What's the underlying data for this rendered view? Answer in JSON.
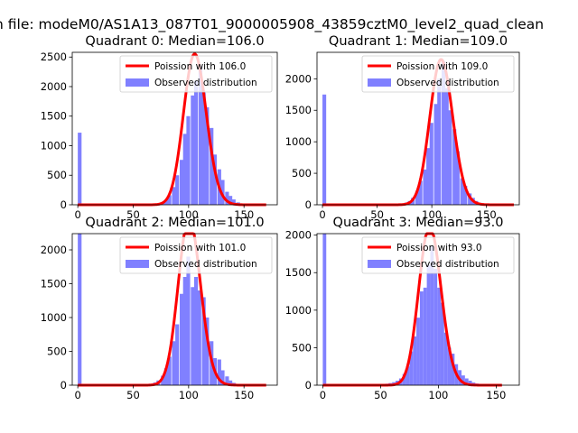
{
  "figure": {
    "suptitle": "n file: modeM0/AS1A13_087T01_9000005908_43859cztM0_level2_quad_clean"
  },
  "chart_data": [
    {
      "type": "bar",
      "title": "Quadrant 0: Median=106.0",
      "xlim": [
        -5,
        180
      ],
      "ylim": [
        0,
        2580
      ],
      "xticks": [
        0,
        50,
        100,
        150
      ],
      "yticks": [
        0,
        500,
        1000,
        1500,
        2000,
        2500
      ],
      "grid": false,
      "legend_position": "top-right",
      "bin_width": 3.4,
      "hist": {
        "name": "Observed distribution",
        "color": "#8080ff",
        "bins": [
          [
            0,
            1220
          ],
          [
            61,
            10
          ],
          [
            64,
            12
          ],
          [
            68,
            18
          ],
          [
            71,
            25
          ],
          [
            75,
            45
          ],
          [
            78,
            80
          ],
          [
            81,
            160
          ],
          [
            85,
            300
          ],
          [
            88,
            500
          ],
          [
            92,
            760
          ],
          [
            95,
            1200
          ],
          [
            98,
            1500
          ],
          [
            102,
            1850
          ],
          [
            105,
            2100
          ],
          [
            109,
            2350
          ],
          [
            112,
            1900
          ],
          [
            115,
            1650
          ],
          [
            119,
            1300
          ],
          [
            122,
            850
          ],
          [
            126,
            600
          ],
          [
            129,
            420
          ],
          [
            133,
            220
          ],
          [
            136,
            150
          ],
          [
            139,
            90
          ],
          [
            143,
            40
          ],
          [
            146,
            20
          ],
          [
            150,
            10
          ]
        ]
      },
      "curve": {
        "name": "Poission with 106.0",
        "color": "#ff0000",
        "mean": 106.0,
        "scale": 3.4,
        "x_range": [
          0,
          170
        ]
      }
    },
    {
      "type": "bar",
      "title": "Quadrant 1: Median=109.0",
      "xlim": [
        -5,
        180
      ],
      "ylim": [
        0,
        2420
      ],
      "xticks": [
        0,
        50,
        100,
        150
      ],
      "yticks": [
        0,
        500,
        1000,
        1500,
        2000
      ],
      "grid": false,
      "legend_position": "top-right",
      "bin_width": 3.4,
      "hist": {
        "name": "Observed distribution",
        "color": "#8080ff",
        "bins": [
          [
            0,
            1750
          ],
          [
            64,
            10
          ],
          [
            68,
            15
          ],
          [
            71,
            22
          ],
          [
            75,
            35
          ],
          [
            78,
            60
          ],
          [
            81,
            110
          ],
          [
            85,
            220
          ],
          [
            88,
            380
          ],
          [
            92,
            560
          ],
          [
            95,
            900
          ],
          [
            98,
            1300
          ],
          [
            102,
            1600
          ],
          [
            105,
            2000
          ],
          [
            109,
            2280
          ],
          [
            112,
            1850
          ],
          [
            115,
            1500
          ],
          [
            119,
            1200
          ],
          [
            122,
            850
          ],
          [
            126,
            420
          ],
          [
            129,
            300
          ],
          [
            133,
            180
          ],
          [
            136,
            110
          ],
          [
            139,
            60
          ],
          [
            143,
            30
          ],
          [
            146,
            15
          ],
          [
            150,
            8
          ]
        ]
      },
      "curve": {
        "name": "Poission with 109.0",
        "color": "#ff0000",
        "mean": 109.0,
        "scale": 3.4,
        "x_range": [
          0,
          175
        ]
      }
    },
    {
      "type": "bar",
      "title": "Quadrant 2: Median=101.0",
      "xlim": [
        -5,
        180
      ],
      "ylim": [
        0,
        2240
      ],
      "xticks": [
        0,
        50,
        100,
        150
      ],
      "yticks": [
        0,
        500,
        1000,
        1500,
        2000
      ],
      "grid": false,
      "legend_position": "top-right",
      "bin_width": 3.4,
      "hist": {
        "name": "Observed distribution",
        "color": "#8080ff",
        "bins": [
          [
            0,
            2240
          ],
          [
            57,
            10
          ],
          [
            61,
            15
          ],
          [
            64,
            22
          ],
          [
            68,
            40
          ],
          [
            71,
            70
          ],
          [
            75,
            140
          ],
          [
            78,
            250
          ],
          [
            81,
            420
          ],
          [
            85,
            650
          ],
          [
            88,
            900
          ],
          [
            92,
            1350
          ],
          [
            95,
            1600
          ],
          [
            98,
            1900
          ],
          [
            102,
            1450
          ],
          [
            105,
            1600
          ],
          [
            108,
            1400
          ],
          [
            112,
            1300
          ],
          [
            115,
            1000
          ],
          [
            119,
            650
          ],
          [
            122,
            400
          ],
          [
            126,
            380
          ],
          [
            129,
            220
          ],
          [
            133,
            130
          ],
          [
            136,
            70
          ],
          [
            139,
            35
          ],
          [
            143,
            18
          ],
          [
            146,
            8
          ]
        ]
      },
      "curve": {
        "name": "Poission with 101.0",
        "color": "#ff0000",
        "mean": 101.0,
        "scale": 3.4,
        "x_range": [
          0,
          170
        ]
      }
    },
    {
      "type": "bar",
      "title": "Quadrant 3: Median=93.0",
      "xlim": [
        -5,
        170
      ],
      "ylim": [
        0,
        2020
      ],
      "xticks": [
        0,
        50,
        100,
        150
      ],
      "yticks": [
        0,
        500,
        1000,
        1500,
        2000
      ],
      "grid": false,
      "legend_position": "top-right",
      "bin_width": 3.0,
      "hist": {
        "name": "Observed distribution",
        "color": "#8080ff",
        "bins": [
          [
            0,
            2020
          ],
          [
            51,
            15
          ],
          [
            54,
            20
          ],
          [
            57,
            28
          ],
          [
            60,
            40
          ],
          [
            63,
            60
          ],
          [
            66,
            90
          ],
          [
            69,
            150
          ],
          [
            72,
            250
          ],
          [
            75,
            450
          ],
          [
            78,
            650
          ],
          [
            81,
            900
          ],
          [
            84,
            1250
          ],
          [
            87,
            1300
          ],
          [
            90,
            1600
          ],
          [
            93,
            1850
          ],
          [
            96,
            1550
          ],
          [
            99,
            1300
          ],
          [
            102,
            1100
          ],
          [
            105,
            700
          ],
          [
            108,
            500
          ],
          [
            111,
            420
          ],
          [
            114,
            280
          ],
          [
            117,
            200
          ],
          [
            120,
            130
          ],
          [
            123,
            90
          ],
          [
            126,
            60
          ],
          [
            129,
            35
          ],
          [
            132,
            22
          ],
          [
            135,
            15
          ],
          [
            138,
            10
          ],
          [
            141,
            8
          ],
          [
            144,
            6
          ],
          [
            147,
            5
          ]
        ]
      },
      "curve": {
        "name": "Poission with 93.0",
        "color": "#ff0000",
        "mean": 93.0,
        "scale": 3.0,
        "x_range": [
          0,
          155
        ]
      }
    }
  ]
}
